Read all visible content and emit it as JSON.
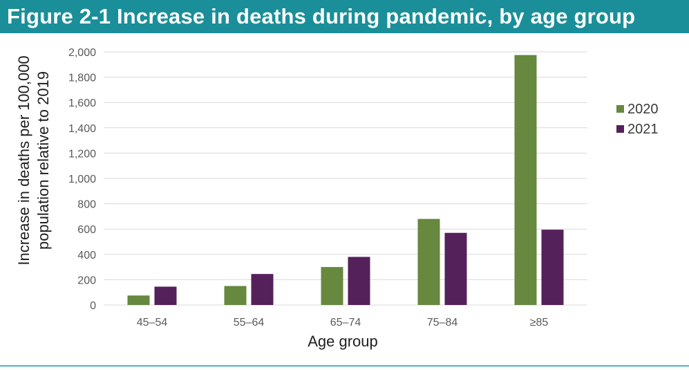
{
  "figure": {
    "title": "Figure 2-1 Increase in deaths during pandemic, by age group"
  },
  "colors": {
    "title_bar": "#1a8f99",
    "rule": "#48b6c3",
    "grid": "#d9d9d9",
    "series_2020": "#66883f",
    "series_2021": "#55215a"
  },
  "chart_data": {
    "type": "bar",
    "title": "Figure 2-1 Increase in deaths during pandemic, by age group",
    "xlabel": "Age group",
    "ylabel_lines": [
      "Increase in deaths per 100,000",
      "population relative to 2019"
    ],
    "categories": [
      "45–54",
      "55–64",
      "65–74",
      "75–84",
      "≥85"
    ],
    "series": [
      {
        "name": "2020",
        "color": "#66883f",
        "values": [
          75,
          150,
          300,
          680,
          1975
        ]
      },
      {
        "name": "2021",
        "color": "#55215a",
        "values": [
          145,
          245,
          380,
          570,
          595
        ]
      }
    ],
    "ylim": [
      0,
      2000
    ],
    "yticks": [
      0,
      200,
      400,
      600,
      800,
      1000,
      1200,
      1400,
      1600,
      1800,
      2000
    ],
    "ytick_labels": [
      "0",
      "200",
      "400",
      "600",
      "800",
      "1,000",
      "1,200",
      "1,400",
      "1,600",
      "1,800",
      "2,000"
    ],
    "grid": true,
    "legend_position": "right"
  }
}
